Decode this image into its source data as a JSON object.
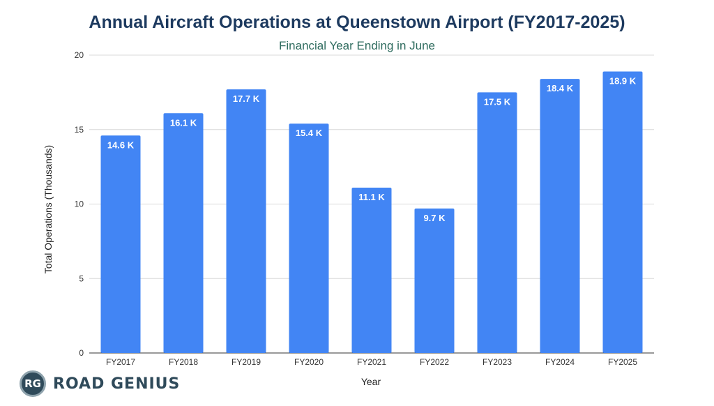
{
  "chart_data": {
    "type": "bar",
    "title": "Annual Aircraft Operations at Queenstown Airport (FY2017-2025)",
    "subtitle": "Financial Year Ending in June",
    "xlabel": "Year",
    "ylabel": "Total Operations (Thousands)",
    "categories": [
      "FY2017",
      "FY2018",
      "FY2019",
      "FY2020",
      "FY2021",
      "FY2022",
      "FY2023",
      "FY2024",
      "FY2025"
    ],
    "values": [
      14.6,
      16.1,
      17.7,
      15.4,
      11.1,
      9.7,
      17.5,
      18.4,
      18.9
    ],
    "data_labels": [
      "14.6 K",
      "16.1 K",
      "17.7 K",
      "15.4 K",
      "11.1 K",
      "9.7 K",
      "17.5 K",
      "18.4 K",
      "18.9 K"
    ],
    "ylim": [
      0,
      20
    ],
    "yticks": [
      0,
      5,
      10,
      15,
      20
    ],
    "grid": true,
    "legend": "none",
    "bar_color": "#4285f4"
  },
  "brand": {
    "badge": "RG",
    "name": "ROAD GENIUS"
  }
}
